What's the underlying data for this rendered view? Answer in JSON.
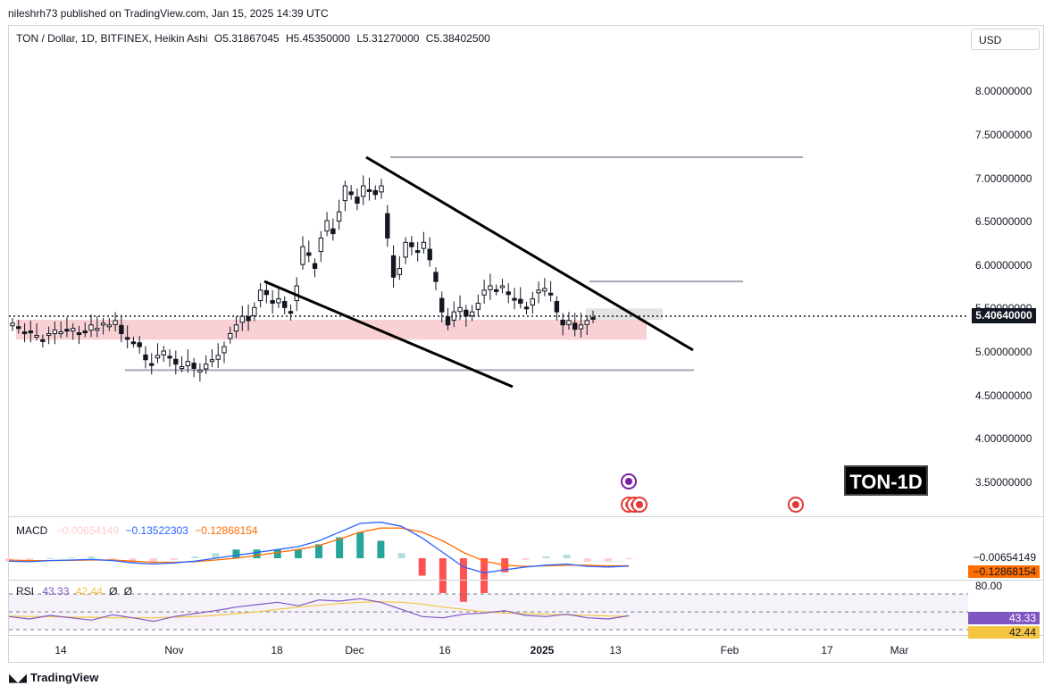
{
  "header": {
    "published": "nileshrh73 published on TradingView.com, Jan 15, 2025 14:39 UTC"
  },
  "chart": {
    "symbol": "TON / Dollar, 1D, BITFINEX, Heikin Ashi",
    "ohlc": {
      "open": "O5.31867045",
      "high": "H5.45350000",
      "low": "L5.31270000",
      "close": "C5.38402500"
    },
    "currency_button": "USD",
    "last_price": "5.40640000",
    "watermark": "TON-1D"
  },
  "macd": {
    "name": "MACD",
    "histogram": "−0.00654149",
    "macd": "−0.13522303",
    "signal": "−0.12868154",
    "tag_histogram": "−0.00654149",
    "tag_signal": "−0.12868154"
  },
  "rsi": {
    "name": "RSI",
    "value": "43.33",
    "ma": "42.44",
    "extra1": "Ø",
    "extra2": "Ø",
    "level_upper": "80.00",
    "tag_value": "43.33",
    "tag_ma": "42.44"
  },
  "footer": {
    "logo_text": "TradingView"
  },
  "colors": {
    "up": "#131722",
    "down": "#131722",
    "zone": "#f7c6c9",
    "macd_line": "#2962ff",
    "signal_line": "#ff6d00",
    "hist_pos_strong": "#26a69a",
    "hist_pos_weak": "#b2dfdb",
    "hist_neg_strong": "#ff5252",
    "hist_neg_weak": "#ffcdd2",
    "rsi_line": "#7e57c2",
    "rsi_ma": "#f5c542"
  },
  "chart_data": [
    {
      "type": "candlestick",
      "title": "TON / Dollar, 1D, BITFINEX, Heikin Ashi",
      "y_ticks": [
        "8.00000000",
        "7.50000000",
        "7.00000000",
        "6.50000000",
        "6.00000000",
        "5.50000000",
        "5.00000000",
        "4.50000000",
        "4.00000000",
        "3.50000000"
      ],
      "x_ticks": [
        "14",
        "Nov",
        "18",
        "Dec",
        "16",
        "2025",
        "13",
        "Feb",
        "17",
        "Mar"
      ],
      "ylim": [
        3.3,
        8.3
      ],
      "last_price": 5.4064,
      "support_zone": [
        5.13,
        5.36
      ],
      "resistance_levels": [
        7.23,
        5.8,
        4.78
      ],
      "trendline_upper": [
        [
          "Dec 5",
          7.23
        ],
        [
          "Jan 25",
          5.0
        ]
      ],
      "trendline_lower": [
        [
          "Nov 15",
          5.8
        ],
        [
          "Jan 1",
          4.6
        ]
      ],
      "candles_close": [
        5.32,
        5.28,
        5.2,
        5.22,
        5.18,
        5.12,
        5.2,
        5.24,
        5.22,
        5.24,
        5.26,
        5.2,
        5.22,
        5.3,
        5.26,
        5.32,
        5.3,
        5.35,
        5.2,
        5.15,
        5.1,
        5.05,
        4.9,
        4.85,
        4.95,
        5.0,
        4.92,
        4.85,
        4.82,
        4.88,
        4.8,
        4.78,
        4.85,
        4.9,
        4.95,
        5.05,
        5.2,
        5.3,
        5.4,
        5.35,
        5.5,
        5.7,
        5.65,
        5.55,
        5.6,
        5.5,
        5.45,
        5.75,
        6.2,
        6.1,
        5.95,
        6.3,
        6.5,
        6.35,
        6.6,
        6.9,
        6.8,
        6.7,
        6.9,
        6.85,
        6.8,
        6.9,
        6.3,
        5.85,
        5.95,
        6.25,
        6.2,
        6.15,
        6.25,
        6.05,
        5.8,
        5.45,
        5.3,
        5.45,
        5.5,
        5.4,
        5.45,
        5.55,
        5.7,
        5.75,
        5.7,
        5.75,
        5.65,
        5.6,
        5.55,
        5.5,
        5.6,
        5.7,
        5.72,
        5.65,
        5.45,
        5.3,
        5.35,
        5.25,
        5.3,
        5.35,
        5.38
      ]
    },
    {
      "type": "line",
      "title": "MACD",
      "series": [
        {
          "name": "MACD",
          "values": [
            -0.05,
            -0.06,
            -0.04,
            -0.03,
            -0.02,
            -0.04,
            -0.08,
            -0.1,
            -0.08,
            -0.05,
            0.0,
            0.05,
            0.1,
            0.15,
            0.2,
            0.3,
            0.45,
            0.6,
            0.62,
            0.55,
            0.35,
            0.1,
            -0.15,
            -0.25,
            -0.2,
            -0.15,
            -0.12,
            -0.1,
            -0.14,
            -0.15,
            -0.135
          ]
        },
        {
          "name": "Signal",
          "values": [
            -0.03,
            -0.04,
            -0.04,
            -0.035,
            -0.03,
            -0.03,
            -0.05,
            -0.07,
            -0.07,
            -0.06,
            -0.03,
            0.0,
            0.05,
            0.1,
            0.15,
            0.22,
            0.33,
            0.45,
            0.52,
            0.52,
            0.45,
            0.3,
            0.1,
            -0.05,
            -0.12,
            -0.14,
            -0.13,
            -0.12,
            -0.12,
            -0.13,
            -0.129
          ]
        }
      ]
    },
    {
      "type": "line",
      "title": "RSI",
      "series": [
        {
          "name": "RSI",
          "values": [
            42,
            38,
            44,
            40,
            36,
            45,
            40,
            34,
            42,
            47,
            52,
            58,
            62,
            66,
            60,
            70,
            68,
            72,
            66,
            54,
            42,
            40,
            46,
            48,
            52,
            44,
            42,
            46,
            40,
            38,
            43.33
          ]
        },
        {
          "name": "MA",
          "values": [
            43,
            42,
            42,
            41,
            41,
            40,
            40,
            40,
            41,
            42,
            44,
            47,
            50,
            54,
            58,
            61,
            64,
            66,
            67,
            66,
            63,
            58,
            54,
            50,
            48,
            47,
            46,
            45,
            44,
            43,
            42.44
          ]
        }
      ],
      "levels": [
        80,
        50,
        20
      ]
    }
  ]
}
